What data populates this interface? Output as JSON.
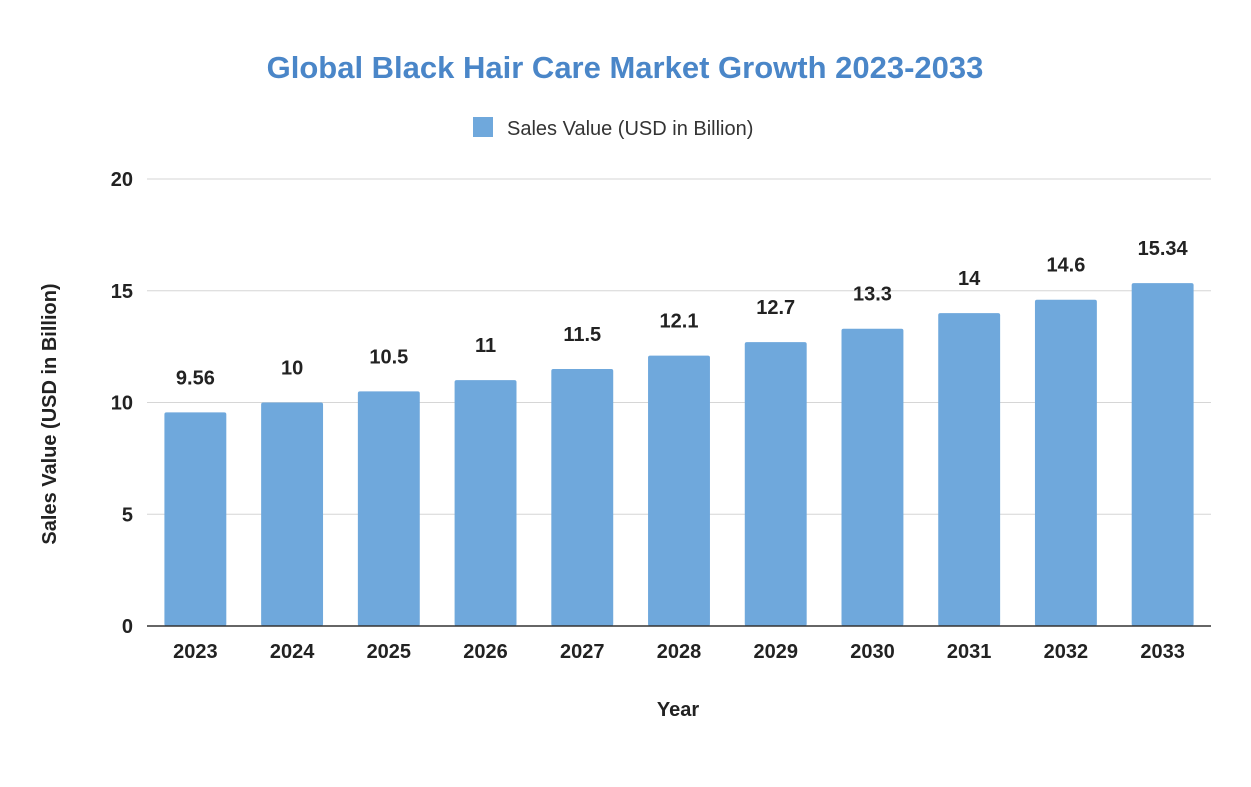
{
  "chart_data": {
    "type": "bar",
    "title": "Global Black Hair Care Market Growth 2023-2033",
    "categories": [
      "2023",
      "2024",
      "2025",
      "2026",
      "2027",
      "2028",
      "2029",
      "2030",
      "2031",
      "2032",
      "2033"
    ],
    "series": [
      {
        "name": "Sales Value (USD in Billion)",
        "values": [
          9.56,
          10,
          10.5,
          11,
          11.5,
          12.1,
          12.7,
          13.3,
          14,
          14.6,
          15.34
        ],
        "color": "#6fa8dc"
      }
    ],
    "data_labels": [
      "9.56",
      "10",
      "10.5",
      "11",
      "11.5",
      "12.1",
      "12.7",
      "13.3",
      "14",
      "14.6",
      "15.34"
    ],
    "xlabel": "Year",
    "ylabel": "Sales Value (USD in Billion)",
    "ylim": [
      0,
      20
    ],
    "yticks": [
      0,
      5,
      10,
      15,
      20
    ],
    "grid": true,
    "legend_position": "top-center",
    "title_color": "#4a86c8",
    "gridline_color": "#d6d6d6",
    "axis_color": "#333333"
  }
}
